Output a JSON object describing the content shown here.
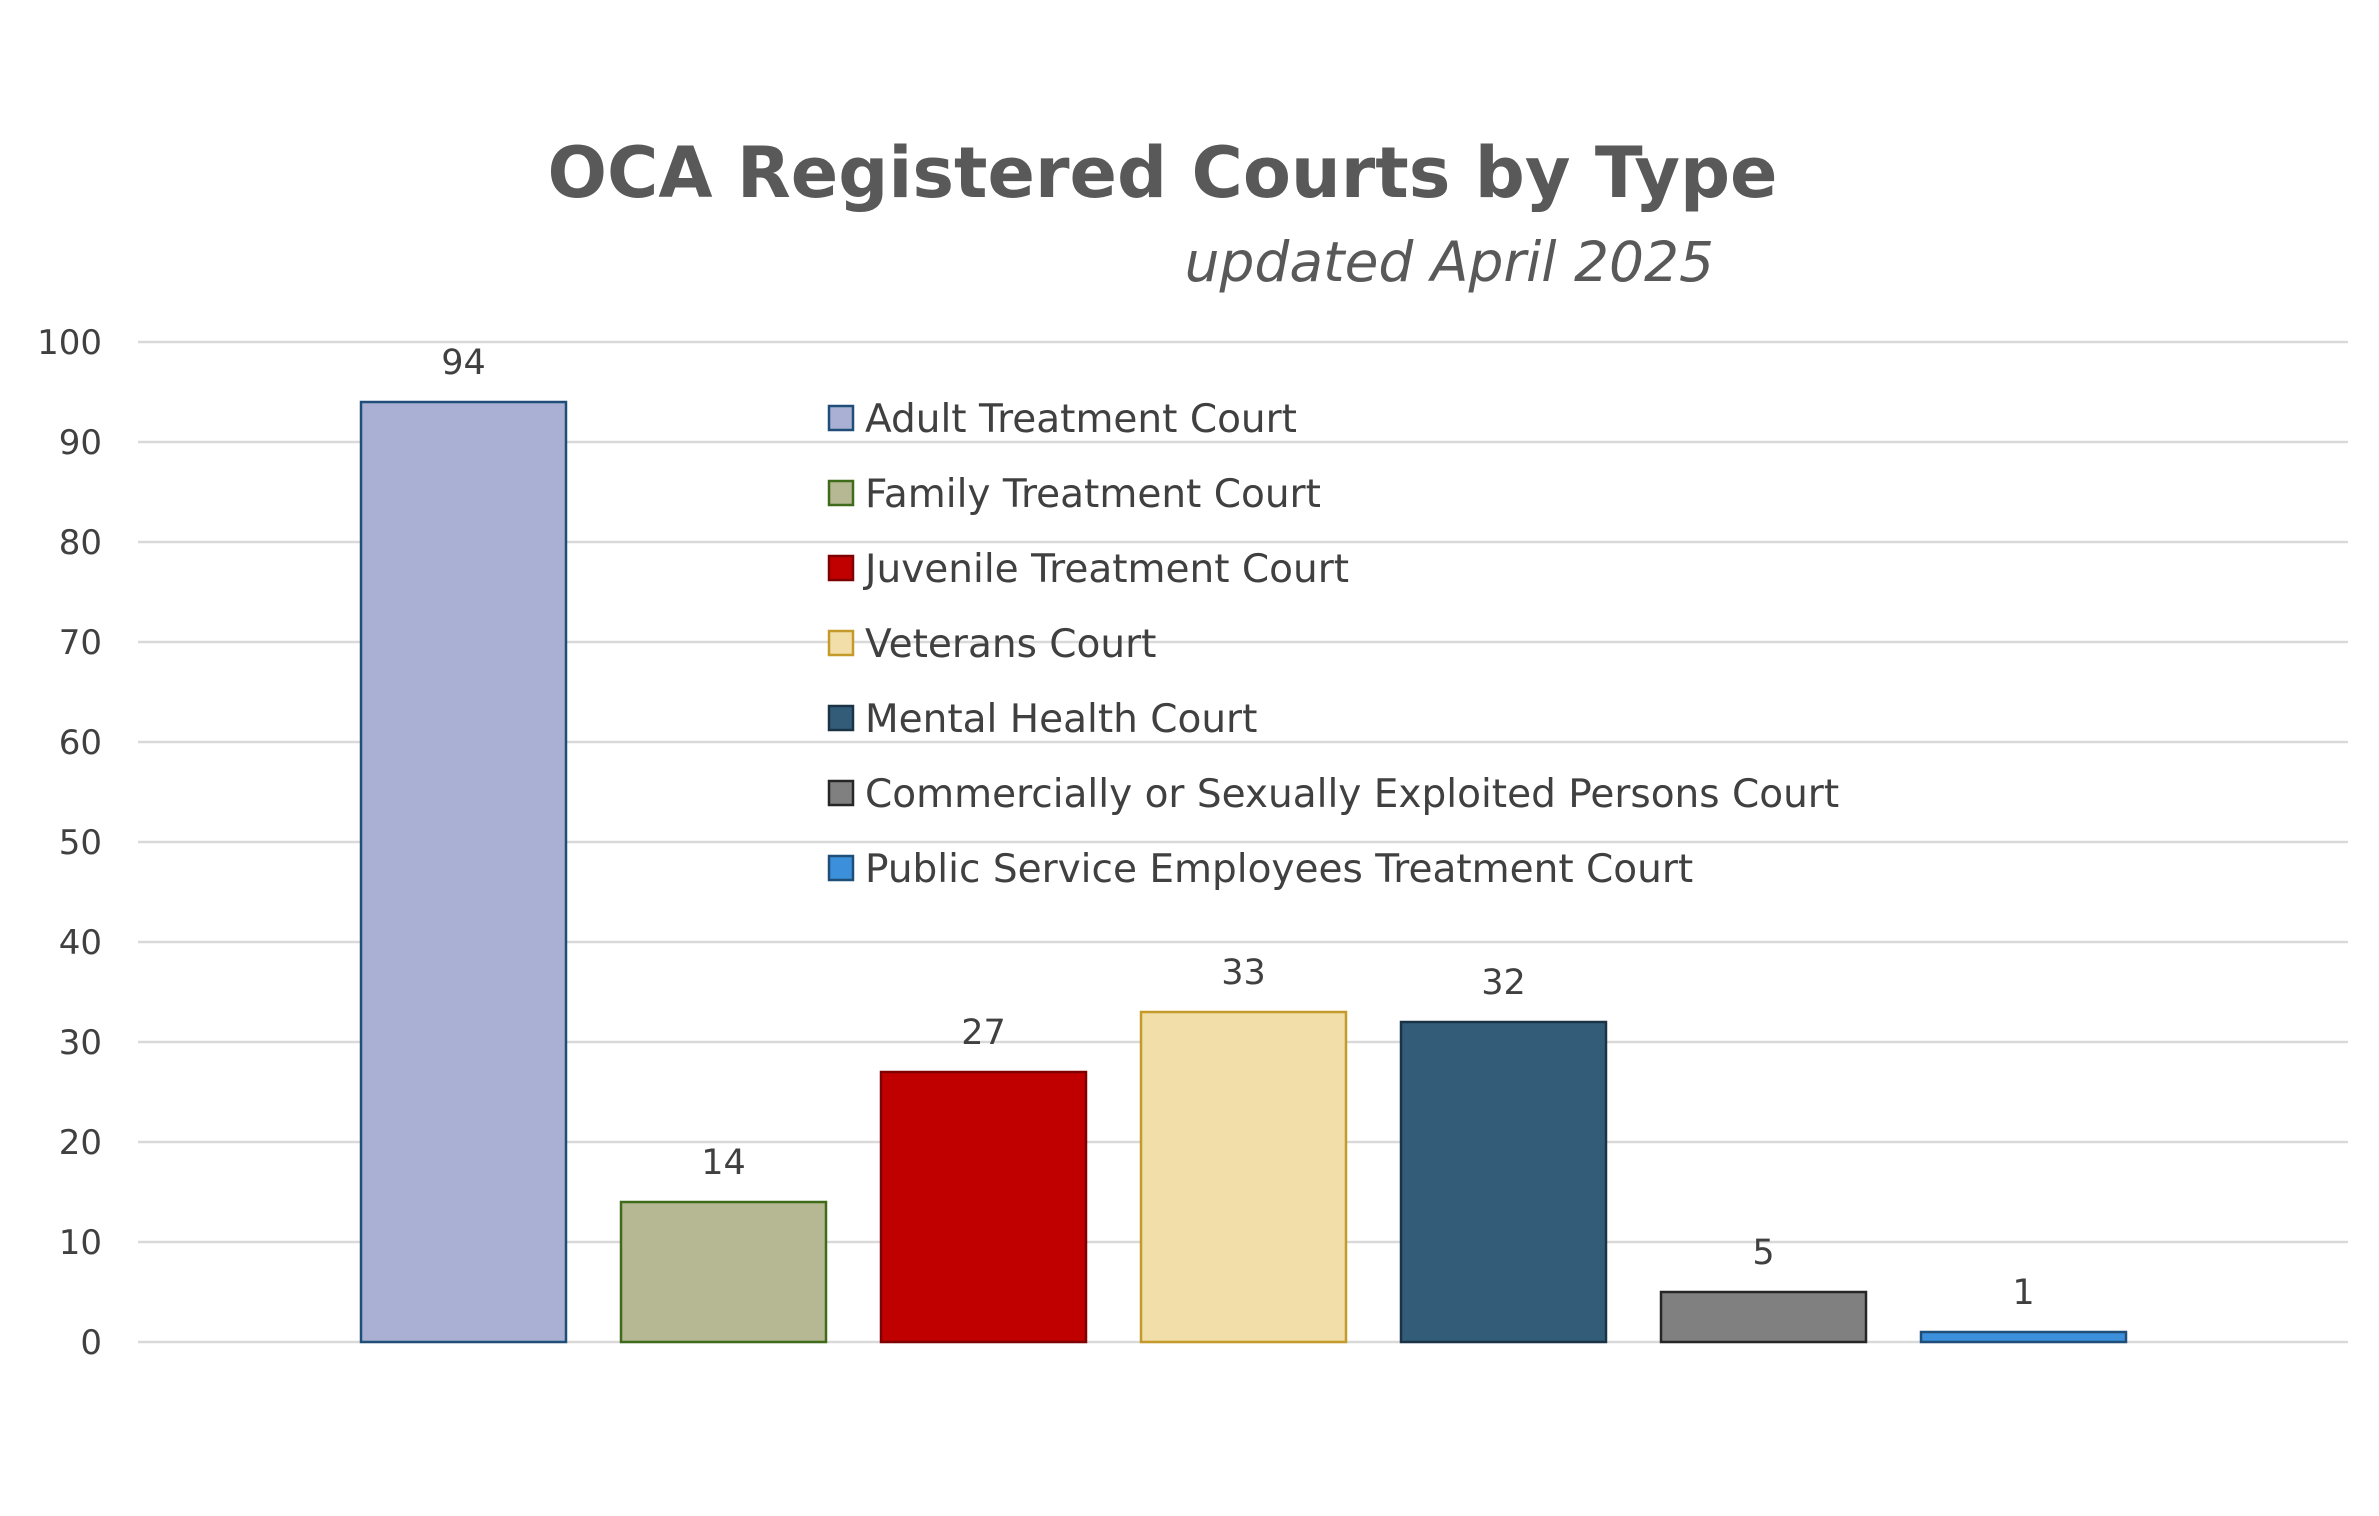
{
  "chart_data": {
    "type": "bar",
    "title": "OCA Registered Courts by Type",
    "subtitle": "updated April 2025",
    "xlabel": "",
    "ylabel": "",
    "ylim": [
      0,
      100
    ],
    "yticks": [
      "0",
      "10",
      "20",
      "30",
      "40",
      "50",
      "60",
      "70",
      "80",
      "90",
      "100"
    ],
    "grid": true,
    "legend_position": "top-center",
    "series": [
      {
        "name": "Adult Treatment Court",
        "value": 94,
        "label": "94",
        "fill": "#aab0d4",
        "stroke": "#1f4e79"
      },
      {
        "name": "Family Treatment Court",
        "value": 14,
        "label": "14",
        "fill": "#b5b893",
        "stroke": "#3f6b1a"
      },
      {
        "name": "Juvenile Treatment Court",
        "value": 27,
        "label": "27",
        "fill": "#c00000",
        "stroke": "#7f0000"
      },
      {
        "name": "Veterans Court",
        "value": 33,
        "label": "33",
        "fill": "#f2dea8",
        "stroke": "#c49a2b"
      },
      {
        "name": "Mental Health Court",
        "value": 32,
        "label": "32",
        "fill": "#335c78",
        "stroke": "#1b3346"
      },
      {
        "name": "Commercially or Sexually Exploited Persons Court",
        "value": 5,
        "label": "5",
        "fill": "#808080",
        "stroke": "#262626"
      },
      {
        "name": "Public Service Employees Treatment Court",
        "value": 1,
        "label": "1",
        "fill": "#3b8fdb",
        "stroke": "#1f4e79"
      }
    ]
  }
}
